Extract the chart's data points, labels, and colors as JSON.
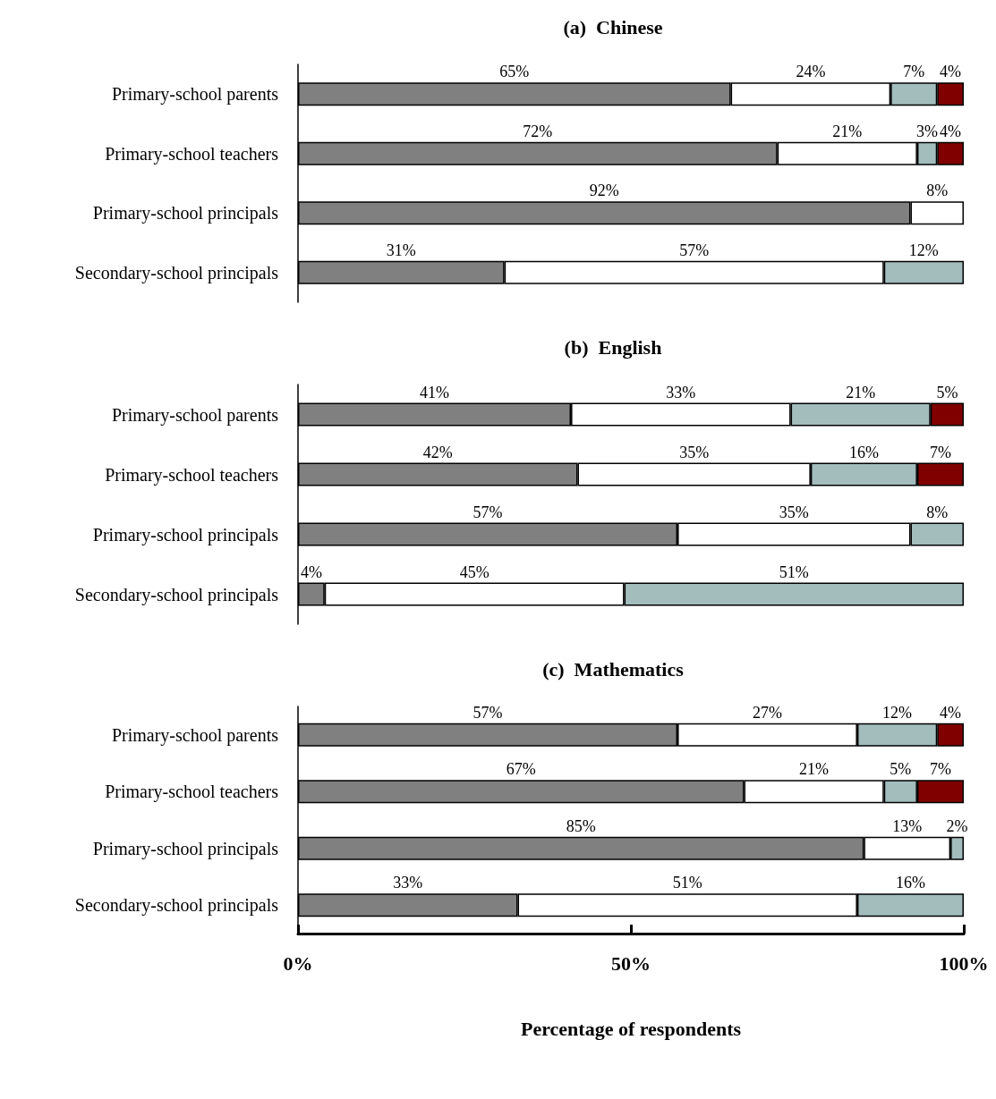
{
  "chart_data": [
    {
      "type": "bar",
      "orientation": "horizontal",
      "stacked": true,
      "title": "(a)  Chinese",
      "categories": [
        "Primary-school parents",
        "Primary-school teachers",
        "Primary-school principals",
        "Secondary-school principals"
      ],
      "xlim": [
        0,
        100
      ],
      "tick_labels": "y",
      "series": [
        {
          "color": "#808080",
          "values": [
            65,
            72,
            92,
            31
          ],
          "value_labels": [
            "65%",
            "72%",
            "92%",
            "31%"
          ]
        },
        {
          "color": "#ffffff",
          "values": [
            24,
            21,
            8,
            57
          ],
          "value_labels": [
            "24%",
            "21%",
            "8%",
            "57%"
          ]
        },
        {
          "color": "#a3bcbc",
          "values": [
            7,
            3,
            null,
            12
          ],
          "value_labels": [
            "7%",
            "3%",
            null,
            "12%"
          ]
        },
        {
          "color": "#800000",
          "values": [
            4,
            4,
            null,
            null
          ],
          "value_labels": [
            "4%",
            "4%",
            null,
            null
          ]
        }
      ]
    },
    {
      "type": "bar",
      "orientation": "horizontal",
      "stacked": true,
      "title": "(b)  English",
      "categories": [
        "Primary-school parents",
        "Primary-school teachers",
        "Primary-school principals",
        "Secondary-school principals"
      ],
      "xlim": [
        0,
        100
      ],
      "tick_labels": "y",
      "series": [
        {
          "color": "#808080",
          "values": [
            41,
            42,
            57,
            4
          ],
          "value_labels": [
            "41%",
            "42%",
            "57%",
            "4%"
          ]
        },
        {
          "color": "#ffffff",
          "values": [
            33,
            35,
            35,
            45
          ],
          "value_labels": [
            "33%",
            "35%",
            "35%",
            "45%"
          ]
        },
        {
          "color": "#a3bcbc",
          "values": [
            21,
            16,
            8,
            51
          ],
          "value_labels": [
            "21%",
            "16%",
            "8%",
            "51%"
          ]
        },
        {
          "color": "#800000",
          "values": [
            5,
            7,
            null,
            null
          ],
          "value_labels": [
            "5%",
            "7%",
            null,
            null
          ]
        }
      ]
    },
    {
      "type": "bar",
      "orientation": "horizontal",
      "stacked": true,
      "title": "(c)  Mathematics",
      "categories": [
        "Primary-school parents",
        "Primary-school teachers",
        "Primary-school principals",
        "Secondary-school principals"
      ],
      "xlim": [
        0,
        100
      ],
      "xticks": [
        {
          "value": 0,
          "label": "0%"
        },
        {
          "value": 50,
          "label": "50%"
        },
        {
          "value": 100,
          "label": "100%"
        }
      ],
      "xlabel": "Percentage of respondents",
      "series": [
        {
          "color": "#808080",
          "values": [
            57,
            67,
            85,
            33
          ],
          "value_labels": [
            "57%",
            "67%",
            "85%",
            "33%"
          ]
        },
        {
          "color": "#ffffff",
          "values": [
            27,
            21,
            13,
            51
          ],
          "value_labels": [
            "27%",
            "21%",
            "13%",
            "51%"
          ]
        },
        {
          "color": "#a3bcbc",
          "values": [
            12,
            5,
            2,
            16
          ],
          "value_labels": [
            "12%",
            "5%",
            "2%",
            "16%"
          ]
        },
        {
          "color": "#800000",
          "values": [
            4,
            7,
            null,
            null
          ],
          "value_labels": [
            "4%",
            "7%",
            null,
            null
          ]
        }
      ]
    }
  ]
}
